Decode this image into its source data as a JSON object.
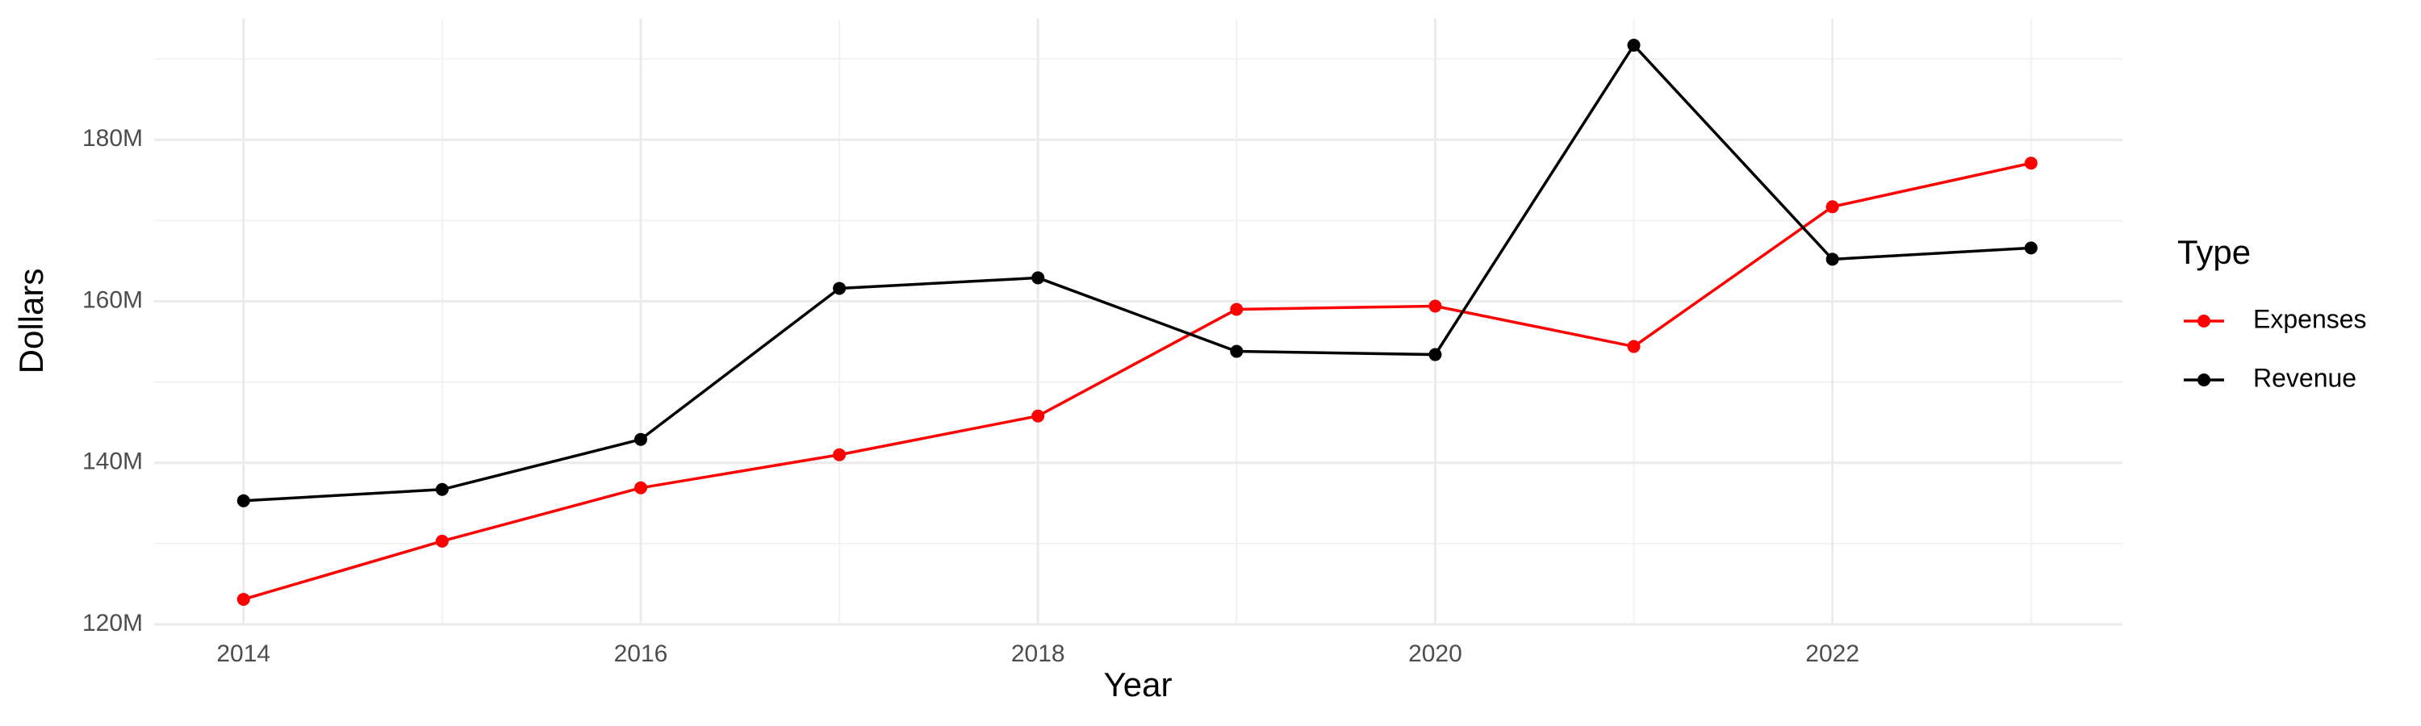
{
  "chart_data": {
    "type": "line",
    "x_label": "Year",
    "y_label": "Dollars",
    "legend_title": "Type",
    "legend_position": "right",
    "grid": true,
    "x": [
      2014,
      2015,
      2016,
      2017,
      2018,
      2019,
      2020,
      2021,
      2022,
      2023
    ],
    "series": [
      {
        "name": "Expenses",
        "color": "#ff0000",
        "values": [
          123100000,
          130300000,
          136900000,
          141000000,
          145800000,
          159000000,
          159400000,
          154400000,
          171700000,
          177100000
        ]
      },
      {
        "name": "Revenue",
        "color": "#000000",
        "values": [
          135300000,
          136700000,
          142900000,
          161600000,
          162900000,
          153800000,
          153400000,
          191700000,
          165200000,
          166600000
        ]
      }
    ],
    "xlim": [
      2013.55,
      2023.46
    ],
    "xticks": [
      2014,
      2016,
      2018,
      2020,
      2022
    ],
    "ylim": [
      120000000,
      195000000
    ],
    "yticks": [
      {
        "value": 120000000,
        "label": "120M"
      },
      {
        "value": 140000000,
        "label": "140M"
      },
      {
        "value": 160000000,
        "label": "160M"
      },
      {
        "value": 180000000,
        "label": "180M"
      }
    ]
  }
}
